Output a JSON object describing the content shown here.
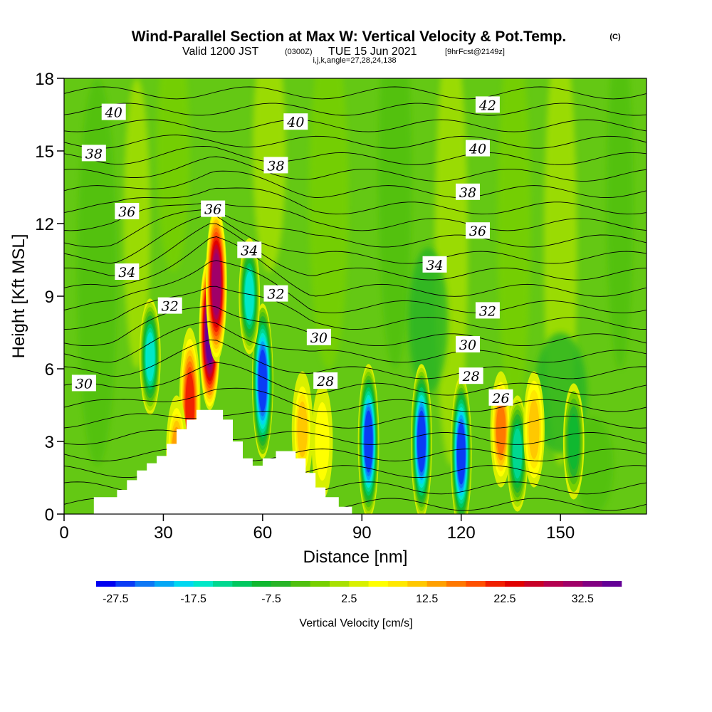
{
  "chart_data": {
    "type": "heatmap",
    "title": "Wind-Parallel Section at Max W: Vertical Velocity & Pot.Temp.",
    "title_mark": "(C)",
    "subtitle": {
      "valid": "Valid 1200 JST",
      "utc": "(0300Z)",
      "date": "TUE 15 Jun 2021",
      "fcst": "[9hrFcst@2149z]",
      "indices": "i,j,k,angle=27,28,24,138"
    },
    "xlabel": "Distance [nm]",
    "ylabel": "Height [Kft MSL]",
    "xlim": [
      0,
      176
    ],
    "ylim": [
      0,
      18
    ],
    "x_ticks": [
      0,
      30,
      60,
      90,
      120,
      150
    ],
    "y_ticks": [
      0,
      3,
      6,
      9,
      12,
      15,
      18
    ],
    "colorbar": {
      "label": "Vertical Velocity [cm/s]",
      "tick_labels": [
        "-27.5",
        "-17.5",
        "-7.5",
        "2.5",
        "12.5",
        "22.5",
        "32.5"
      ],
      "tick_values": [
        -27.5,
        -17.5,
        -7.5,
        2.5,
        12.5,
        22.5,
        32.5
      ],
      "min": -30,
      "max": 37.5,
      "step": 2.5,
      "colors": [
        "#0000f0",
        "#0a3cf5",
        "#0f78f5",
        "#05a8f5",
        "#00d8f0",
        "#00e8c8",
        "#00d890",
        "#00c860",
        "#10b830",
        "#28b428",
        "#50c010",
        "#78d000",
        "#a8e000",
        "#d8f000",
        "#ffff00",
        "#ffe800",
        "#ffc800",
        "#ffa000",
        "#ff7800",
        "#ff5000",
        "#f02000",
        "#e00000",
        "#c80028",
        "#b40050",
        "#a00068",
        "#820082",
        "#640096"
      ]
    },
    "w_cells": [
      {
        "x": 44,
        "z": 7.5,
        "w": 35
      },
      {
        "x": 46,
        "z": 9.5,
        "w": 30
      },
      {
        "x": 38,
        "z": 4.5,
        "w": 22
      },
      {
        "x": 34,
        "z": 2.5,
        "w": 14
      },
      {
        "x": 60,
        "z": 5.5,
        "w": -26
      },
      {
        "x": 56,
        "z": 9,
        "w": -17
      },
      {
        "x": 26,
        "z": 6.5,
        "w": -17
      },
      {
        "x": 72,
        "z": 3.5,
        "w": 12
      },
      {
        "x": 78,
        "z": 3,
        "w": 5
      },
      {
        "x": 92,
        "z": 3,
        "w": -27
      },
      {
        "x": 108,
        "z": 3,
        "w": -27
      },
      {
        "x": 120,
        "z": 2.5,
        "w": -27
      },
      {
        "x": 132,
        "z": 3.5,
        "w": 17
      },
      {
        "x": 137,
        "z": 2.5,
        "w": -15
      },
      {
        "x": 142,
        "z": 3.5,
        "w": 11
      },
      {
        "x": 154,
        "z": 3,
        "w": -8
      }
    ],
    "theta_contours": [
      {
        "value": 26,
        "label": "26",
        "label_pos": [
          132,
          4.8
        ]
      },
      {
        "value": 28,
        "label": "28",
        "label_pos": [
          79,
          5.5
        ]
      },
      {
        "value": 28,
        "label": "28",
        "label_pos": [
          123,
          5.7
        ]
      },
      {
        "value": 30,
        "label": "30",
        "label_pos": [
          6,
          5.4
        ]
      },
      {
        "value": 30,
        "label": "30",
        "label_pos": [
          77,
          7.3
        ]
      },
      {
        "value": 30,
        "label": "30",
        "label_pos": [
          122,
          7
        ]
      },
      {
        "value": 32,
        "label": "32",
        "label_pos": [
          32,
          8.6
        ]
      },
      {
        "value": 32,
        "label": "32",
        "label_pos": [
          64,
          9.1
        ]
      },
      {
        "value": 32,
        "label": "32",
        "label_pos": [
          128,
          8.4
        ]
      },
      {
        "value": 34,
        "label": "34",
        "label_pos": [
          19,
          10
        ]
      },
      {
        "value": 34,
        "label": "34",
        "label_pos": [
          56,
          10.9
        ]
      },
      {
        "value": 34,
        "label": "34",
        "label_pos": [
          112,
          10.3
        ]
      },
      {
        "value": 36,
        "label": "36",
        "label_pos": [
          19,
          12.5
        ]
      },
      {
        "value": 36,
        "label": "36",
        "label_pos": [
          45,
          12.6
        ]
      },
      {
        "value": 36,
        "label": "36",
        "label_pos": [
          125,
          11.7
        ]
      },
      {
        "value": 38,
        "label": "38",
        "label_pos": [
          9,
          14.9
        ]
      },
      {
        "value": 38,
        "label": "38",
        "label_pos": [
          64,
          14.4
        ]
      },
      {
        "value": 38,
        "label": "38",
        "label_pos": [
          122,
          13.3
        ]
      },
      {
        "value": 40,
        "label": "40",
        "label_pos": [
          15,
          16.6
        ]
      },
      {
        "value": 40,
        "label": "40",
        "label_pos": [
          70,
          16.2
        ]
      },
      {
        "value": 40,
        "label": "40",
        "label_pos": [
          125,
          15.1
        ]
      },
      {
        "value": 42,
        "label": "42",
        "label_pos": [
          128,
          16.9
        ]
      }
    ],
    "terrain": [
      [
        9,
        0.7
      ],
      [
        16,
        0.7
      ],
      [
        16,
        1
      ],
      [
        19,
        1
      ],
      [
        19,
        1.4
      ],
      [
        22,
        1.4
      ],
      [
        22,
        1.8
      ],
      [
        25,
        1.8
      ],
      [
        25,
        2.1
      ],
      [
        28,
        2.1
      ],
      [
        28,
        2.4
      ],
      [
        31,
        2.4
      ],
      [
        31,
        2.9
      ],
      [
        34,
        2.9
      ],
      [
        34,
        3.5
      ],
      [
        37,
        3.5
      ],
      [
        37,
        3.9
      ],
      [
        40,
        3.9
      ],
      [
        40,
        4.3
      ],
      [
        48,
        4.3
      ],
      [
        48,
        3.9
      ],
      [
        51,
        3.9
      ],
      [
        51,
        3
      ],
      [
        54,
        3
      ],
      [
        54,
        2.3
      ],
      [
        57,
        2.3
      ],
      [
        57,
        2
      ],
      [
        60,
        2
      ],
      [
        60,
        2.3
      ],
      [
        64,
        2.3
      ],
      [
        64,
        2.6
      ],
      [
        70,
        2.6
      ],
      [
        70,
        2.3
      ],
      [
        73,
        2.3
      ],
      [
        73,
        1.7
      ],
      [
        76,
        1.7
      ],
      [
        76,
        1.1
      ],
      [
        79,
        1.1
      ],
      [
        79,
        0.7
      ],
      [
        83,
        0.7
      ],
      [
        83,
        0.3
      ],
      [
        87,
        0.3
      ]
    ]
  }
}
